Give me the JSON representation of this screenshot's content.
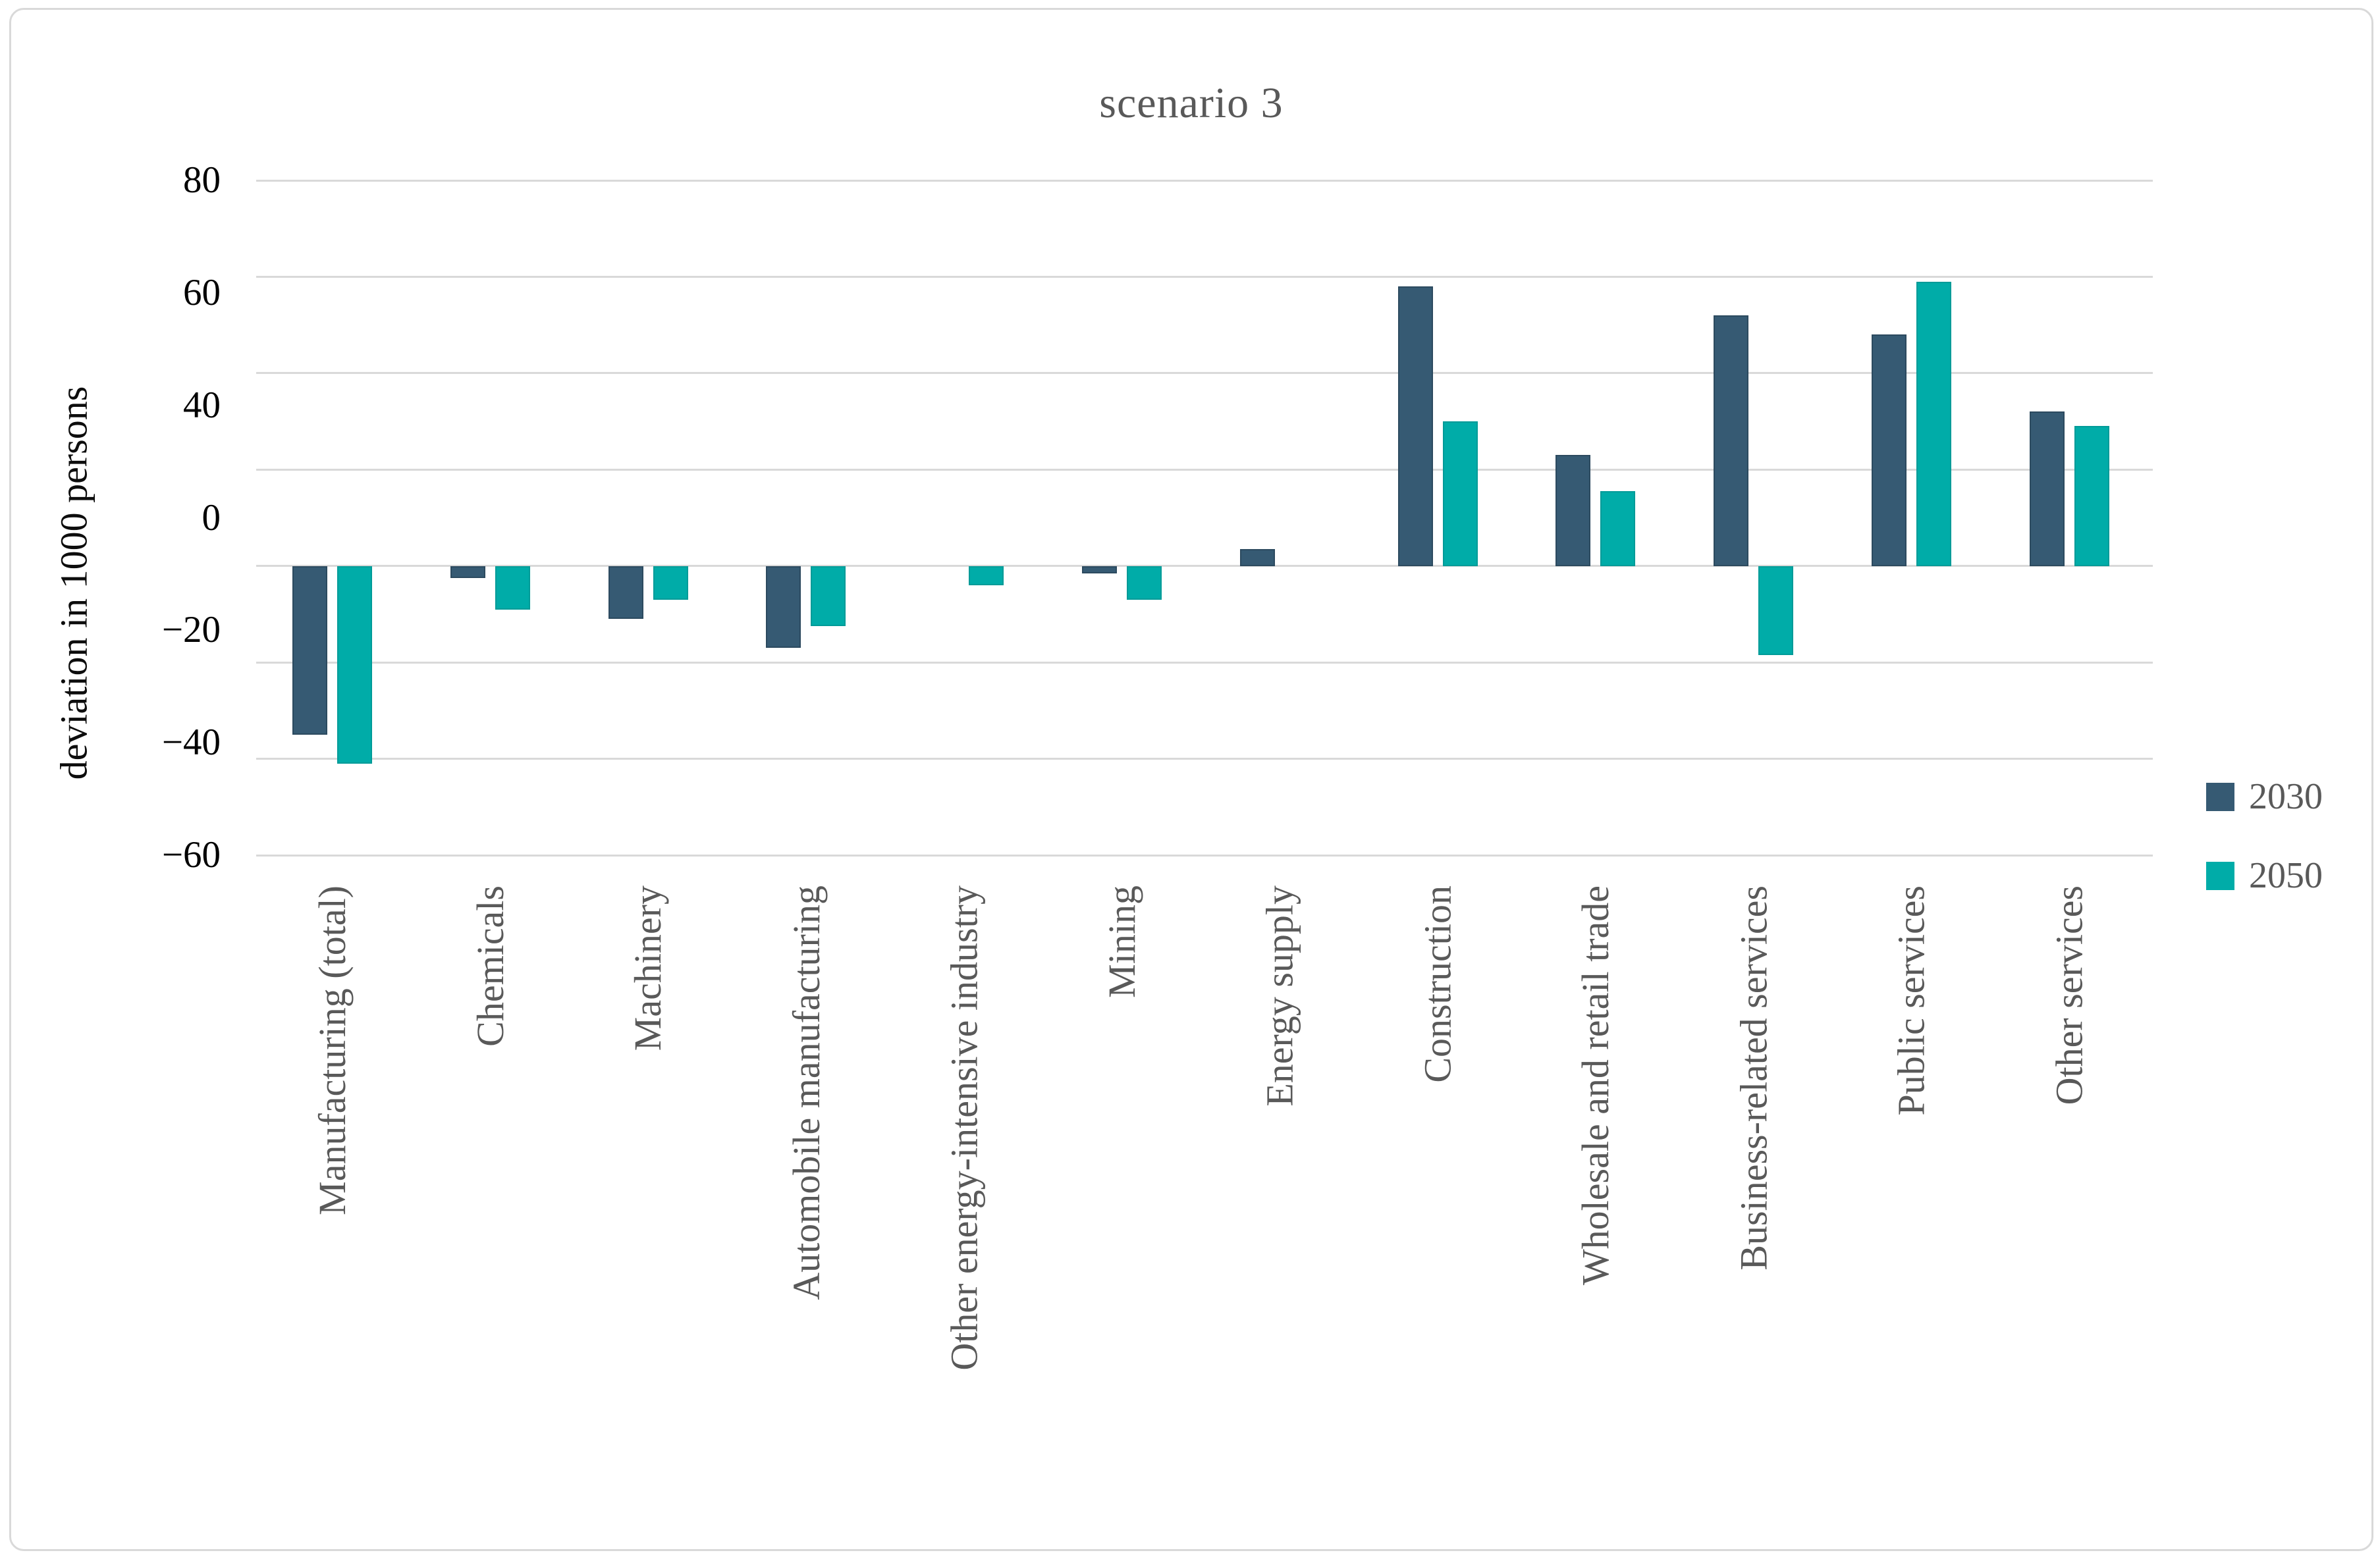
{
  "figure": {
    "title": "scenario 3"
  },
  "y_axis": {
    "title": "deviation in 1000 persons",
    "tick_labels": [
      "80",
      "60",
      "40",
      "0",
      "−20",
      "−40",
      "−60"
    ],
    "gridline_values": [
      80,
      60,
      40,
      20,
      0,
      -20,
      -40,
      -60
    ]
  },
  "legend": {
    "items": [
      {
        "label": "2030",
        "color": "#365a73"
      },
      {
        "label": "2050",
        "color": "#00aca8"
      }
    ]
  },
  "chart_data": {
    "type": "bar",
    "title": "scenario 3",
    "xlabel": "",
    "ylabel": "deviation in 1000 persons",
    "ylim": [
      -60,
      80
    ],
    "grid": true,
    "legend_position": "right",
    "categories": [
      "Manufacturing (total)",
      "Chemicals",
      "Machinery",
      "Automobile manufacturing",
      "Other energy-intensive industry",
      "Mining",
      "Energy supply",
      "Construction",
      "Wholesale and retail trade",
      "Business-related services",
      "Public services",
      "Other services"
    ],
    "series": [
      {
        "name": "2030",
        "color": "#365a73",
        "values": [
          -35,
          -2.5,
          -11,
          -17,
          0,
          -1.5,
          3.5,
          58,
          23,
          52,
          48,
          32
        ]
      },
      {
        "name": "2050",
        "color": "#00aca8",
        "values": [
          -41,
          -9,
          -7,
          -12.5,
          -4,
          -7,
          0,
          30,
          15.5,
          -18.5,
          59,
          29
        ]
      }
    ]
  }
}
